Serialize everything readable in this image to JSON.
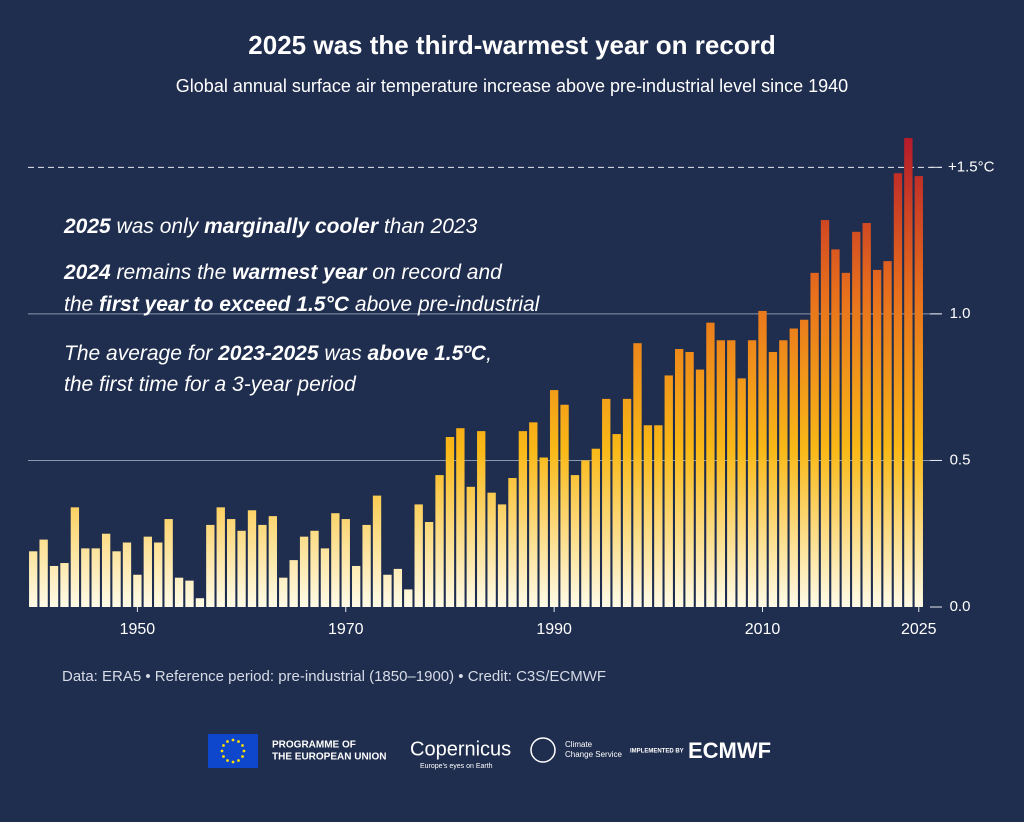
{
  "chart_data": {
    "type": "bar",
    "title": "2025 was the third-warmest year on record",
    "subtitle": "Global annual surface air temperature increase above pre-industrial level since 1940",
    "x": [
      1940,
      1941,
      1942,
      1943,
      1944,
      1945,
      1946,
      1947,
      1948,
      1949,
      1950,
      1951,
      1952,
      1953,
      1954,
      1955,
      1956,
      1957,
      1958,
      1959,
      1960,
      1961,
      1962,
      1963,
      1964,
      1965,
      1966,
      1967,
      1968,
      1969,
      1970,
      1971,
      1972,
      1973,
      1974,
      1975,
      1976,
      1977,
      1978,
      1979,
      1980,
      1981,
      1982,
      1983,
      1984,
      1985,
      1986,
      1987,
      1988,
      1989,
      1990,
      1991,
      1992,
      1993,
      1994,
      1995,
      1996,
      1997,
      1998,
      1999,
      2000,
      2001,
      2002,
      2003,
      2004,
      2005,
      2006,
      2007,
      2008,
      2009,
      2010,
      2011,
      2012,
      2013,
      2014,
      2015,
      2016,
      2017,
      2018,
      2019,
      2020,
      2021,
      2022,
      2023,
      2024,
      2025
    ],
    "values": [
      0.19,
      0.23,
      0.14,
      0.15,
      0.34,
      0.2,
      0.2,
      0.25,
      0.19,
      0.22,
      0.11,
      0.24,
      0.22,
      0.3,
      0.1,
      0.09,
      0.03,
      0.28,
      0.34,
      0.3,
      0.26,
      0.33,
      0.28,
      0.31,
      0.1,
      0.16,
      0.24,
      0.26,
      0.2,
      0.32,
      0.3,
      0.14,
      0.28,
      0.38,
      0.11,
      0.13,
      0.06,
      0.35,
      0.29,
      0.45,
      0.58,
      0.61,
      0.41,
      0.6,
      0.39,
      0.35,
      0.44,
      0.6,
      0.63,
      0.51,
      0.74,
      0.69,
      0.45,
      0.5,
      0.54,
      0.71,
      0.59,
      0.71,
      0.9,
      0.62,
      0.62,
      0.79,
      0.88,
      0.87,
      0.81,
      0.97,
      0.91,
      0.91,
      0.78,
      0.91,
      1.01,
      0.87,
      0.91,
      0.95,
      0.98,
      1.14,
      1.32,
      1.22,
      1.14,
      1.28,
      1.31,
      1.15,
      1.18,
      1.48,
      1.6,
      1.47
    ],
    "gradient": [
      "#fffbe8",
      "#f9b917",
      "#e8701c",
      "#b51a2b"
    ],
    "xlim": [
      1939.5,
      2025.5
    ],
    "xticks": [
      1950,
      1970,
      1990,
      2010,
      2025
    ],
    "ylim": [
      0,
      1.6
    ],
    "yticks": [
      {
        "value": 0,
        "label": "0.0"
      },
      0.5,
      {
        "value": 1,
        "label": "1.0"
      },
      {
        "value": 1.5,
        "label": "+1.5°C"
      }
    ],
    "grid": true,
    "annotations": [
      [
        {
          "text": "2025",
          "bold": true
        },
        {
          "text": " was only "
        },
        {
          "text": "marginally cooler",
          "bold": true
        },
        {
          "text": " than 2023"
        }
      ],
      [
        {
          "text": "2024",
          "bold": true
        },
        {
          "text": " remains the "
        },
        {
          "text": "warmest year",
          "bold": true
        },
        {
          "text": " on record and"
        }
      ],
      [
        {
          "text": "the "
        },
        {
          "text": "first year to exceed 1.5°C",
          "bold": true
        },
        {
          "text": " above pre-industrial"
        }
      ],
      [
        {
          "text": "The average for "
        },
        {
          "text": "2023-2025",
          "bold": true
        },
        {
          "text": " was "
        },
        {
          "text": "above 1.5ºC",
          "bold": true
        },
        {
          "text": ","
        }
      ],
      [
        {
          "text": "the first time for a 3-year period"
        }
      ]
    ],
    "source": "Data: ERA5 • Reference period: pre-industrial (1850–1900) • Credit: C3S/ECMWF"
  },
  "footer": {
    "eu": [
      "PROGRAMME OF",
      "THE EUROPEAN UNION"
    ],
    "copernicus": "Copernicus",
    "copernicus_tagline": "Europe's eyes on Earth",
    "c3s": [
      "Climate",
      "Change Service"
    ],
    "implemented": "IMPLEMENTED BY",
    "ecmwf": "ECMWF"
  }
}
